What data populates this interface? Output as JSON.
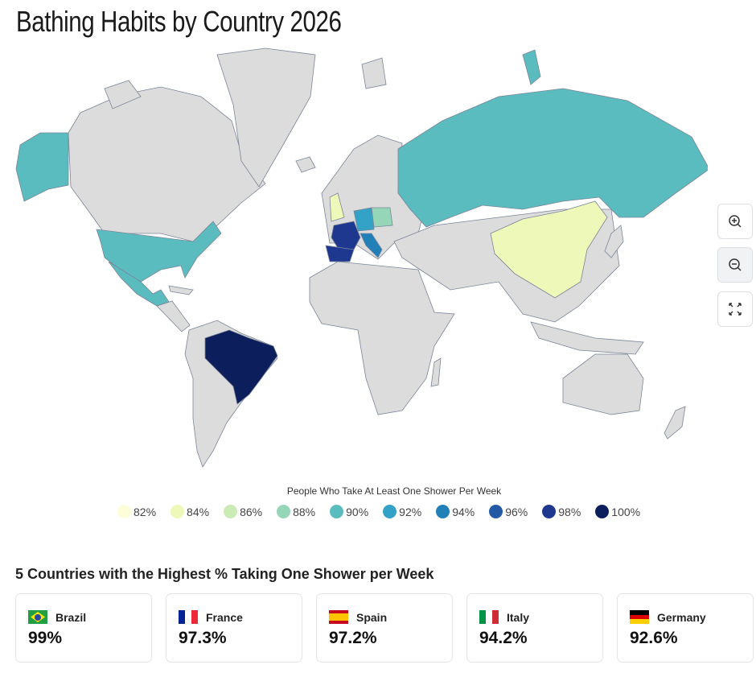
{
  "title": "Bathing Habits by Country 2026",
  "chart_data": {
    "type": "choropleth",
    "title": "Bathing Habits by Country 2026",
    "legend_title": "People Who Take At Least One Shower Per Week",
    "legend_placement": "bottom-center",
    "scale": [
      {
        "label": "82%",
        "value": 82,
        "color": "#fdfed9"
      },
      {
        "label": "84%",
        "value": 84,
        "color": "#eef8b9"
      },
      {
        "label": "86%",
        "value": 86,
        "color": "#cbebb4"
      },
      {
        "label": "88%",
        "value": 88,
        "color": "#95d5b8"
      },
      {
        "label": "90%",
        "value": 90,
        "color": "#5bbcc0"
      },
      {
        "label": "92%",
        "value": 92,
        "color": "#34a1c6"
      },
      {
        "label": "94%",
        "value": 94,
        "color": "#2280b9"
      },
      {
        "label": "96%",
        "value": 96,
        "color": "#2459a5"
      },
      {
        "label": "98%",
        "value": 98,
        "color": "#1e3890"
      },
      {
        "label": "100%",
        "value": 100,
        "color": "#0d1e5c"
      }
    ],
    "countries": {
      "Brazil": 99,
      "France": 97.3,
      "Spain": 97.2,
      "Italy": 94.2,
      "Germany": 92.6,
      "Poland": 88,
      "United States": 90,
      "Mexico": 90,
      "Russia": 90,
      "China": 84.5,
      "United Kingdom": 84
    },
    "no_data_color": "#dcdcdc"
  },
  "top5": {
    "heading": "5 Countries with the Highest % Taking One Shower per Week",
    "cards": [
      {
        "country": "Brazil",
        "value": "99%",
        "flag": "br"
      },
      {
        "country": "France",
        "value": "97.3%",
        "flag": "fr"
      },
      {
        "country": "Spain",
        "value": "97.2%",
        "flag": "es"
      },
      {
        "country": "Italy",
        "value": "94.2%",
        "flag": "it"
      },
      {
        "country": "Germany",
        "value": "92.6%",
        "flag": "de"
      }
    ]
  }
}
